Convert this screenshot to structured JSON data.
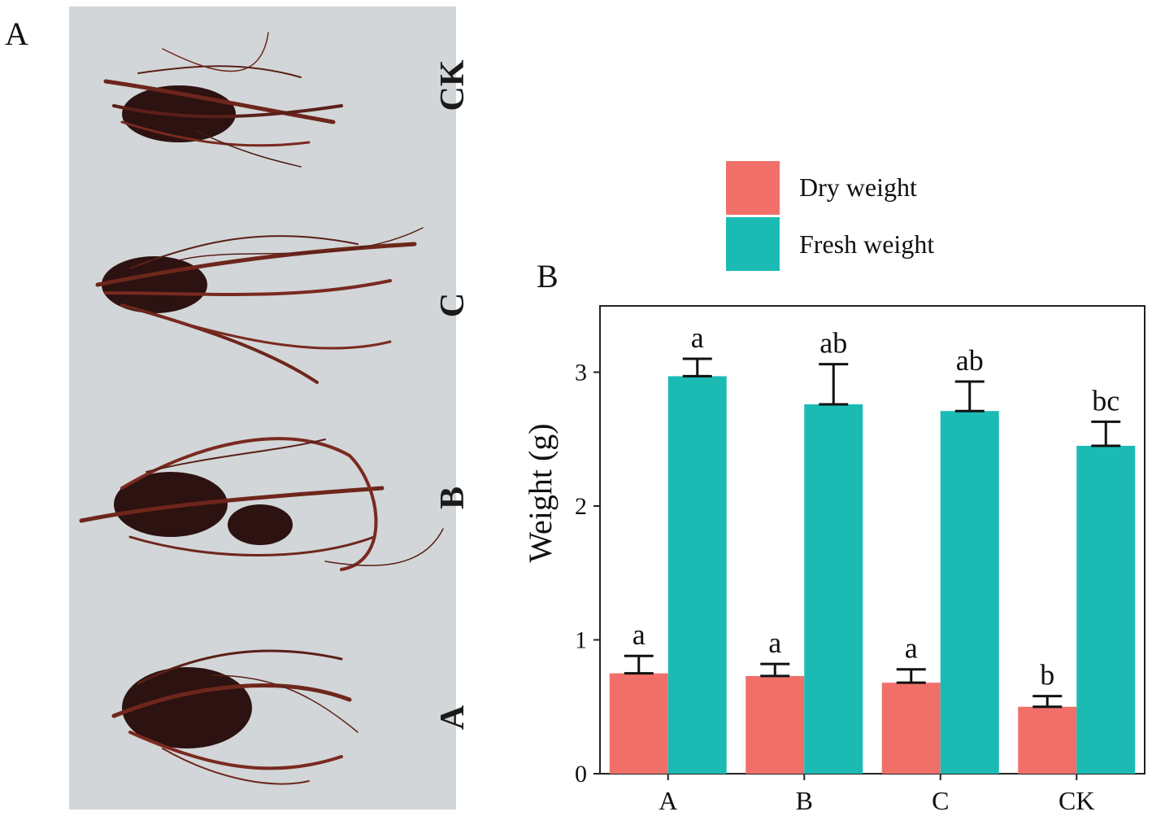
{
  "panel_a": {
    "letter": "A",
    "sample_labels": [
      "CK",
      "C",
      "B",
      "A"
    ],
    "colors": {
      "background": "#d2d6d8",
      "root_dark": "#3a1512",
      "root_mid": "#6e261c",
      "root_light": "#8a3a2a"
    }
  },
  "panel_b": {
    "letter": "B"
  },
  "chart_data": {
    "type": "bar",
    "categories": [
      "A",
      "B",
      "C",
      "CK"
    ],
    "series": [
      {
        "name": "Dry weight",
        "color": "#f07069",
        "values": [
          0.75,
          0.73,
          0.68,
          0.5
        ],
        "errors": [
          0.13,
          0.09,
          0.1,
          0.08
        ],
        "letters": [
          "a",
          "a",
          "a",
          "b"
        ]
      },
      {
        "name": "Fresh weight",
        "color": "#1bbbb4",
        "values": [
          2.97,
          2.76,
          2.71,
          2.45
        ],
        "errors": [
          0.13,
          0.3,
          0.22,
          0.18
        ],
        "letters": [
          "a",
          "ab",
          "ab",
          "bc"
        ]
      }
    ],
    "xlabel": "",
    "ylabel": "Weight (g)",
    "ylim": [
      0,
      3.5
    ],
    "yticks": [
      0,
      1,
      2,
      3
    ],
    "grid": false,
    "legend_position": "top"
  }
}
